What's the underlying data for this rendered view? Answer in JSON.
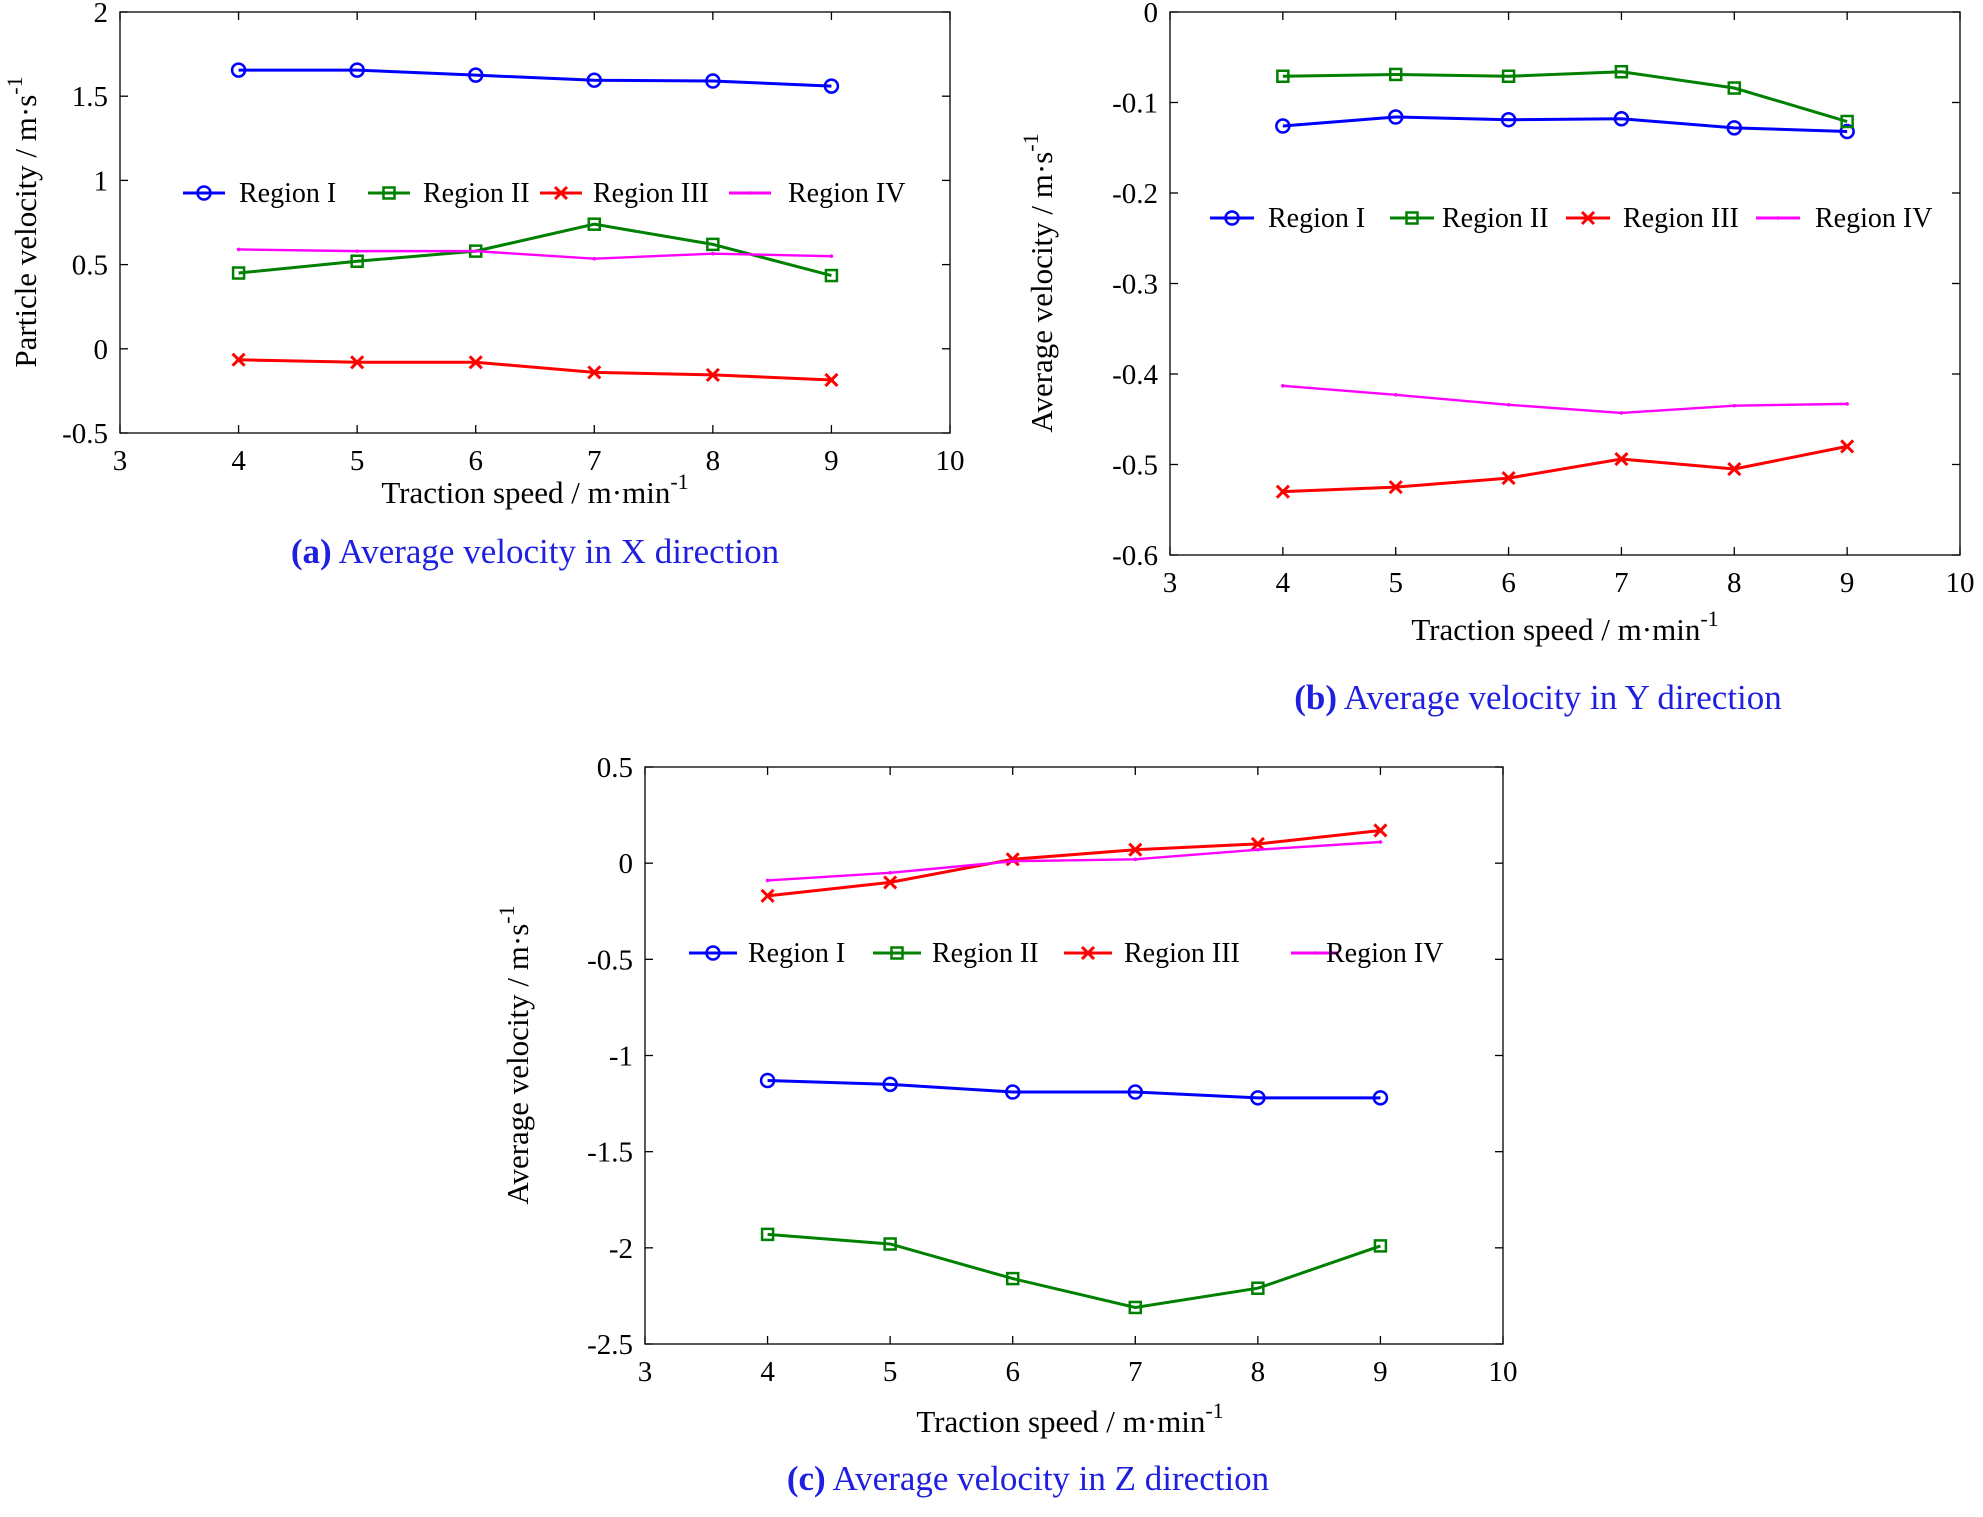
{
  "chart_data": [
    {
      "type": "line",
      "id": "a",
      "caption_label": "(a)",
      "caption_text": " Average velocity in X direction",
      "xlabel": "Traction speed / m·min",
      "xlabel_sup": "-1",
      "ylabel": "Particle velocity / m·s",
      "ylabel_sup": "-1",
      "xlim": [
        3,
        10
      ],
      "ylim": [
        -0.5,
        2
      ],
      "xticks": [
        3,
        4,
        5,
        6,
        7,
        8,
        9,
        10
      ],
      "yticks": [
        -0.5,
        0,
        0.5,
        1,
        1.5,
        2
      ],
      "ytick_labels": [
        "-0.5",
        "0",
        "0.5",
        "1",
        "1.5",
        "2"
      ],
      "legend_position": "upper-middle",
      "x": [
        4,
        5,
        6,
        7,
        8,
        9
      ],
      "series": [
        {
          "name": "Region I",
          "color": "#0000ff",
          "marker": "circle",
          "values": [
            1.655,
            1.655,
            1.625,
            1.595,
            1.59,
            1.56
          ]
        },
        {
          "name": "Region II",
          "color": "#008000",
          "marker": "square",
          "values": [
            0.45,
            0.52,
            0.58,
            0.74,
            0.62,
            0.435
          ]
        },
        {
          "name": "Region III",
          "color": "#ff0000",
          "marker": "x",
          "values": [
            -0.065,
            -0.08,
            -0.08,
            -0.14,
            -0.155,
            -0.185
          ]
        },
        {
          "name": "Region IV",
          "color": "#ff00ff",
          "marker": "dot",
          "values": [
            0.59,
            0.58,
            0.58,
            0.535,
            0.565,
            0.55
          ]
        }
      ]
    },
    {
      "type": "line",
      "id": "b",
      "caption_label": "(b)",
      "caption_text": " Average velocity in Y direction",
      "xlabel": "Traction speed / m·min",
      "xlabel_sup": "-1",
      "ylabel": "Average velocity / m·s",
      "ylabel_sup": "-1",
      "xlim": [
        3,
        10
      ],
      "ylim": [
        -0.6,
        0
      ],
      "xticks": [
        3,
        4,
        5,
        6,
        7,
        8,
        9,
        10
      ],
      "yticks": [
        -0.6,
        -0.5,
        -0.4,
        -0.3,
        -0.2,
        -0.1,
        0
      ],
      "ytick_labels": [
        "-0.6",
        "-0.5",
        "-0.4",
        "-0.3",
        "-0.2",
        "-0.1",
        "0"
      ],
      "legend_position": "upper-middle",
      "x": [
        4,
        5,
        6,
        7,
        8,
        9
      ],
      "series": [
        {
          "name": "Region I",
          "color": "#0000ff",
          "marker": "circle",
          "values": [
            -0.126,
            -0.116,
            -0.119,
            -0.118,
            -0.128,
            -0.132
          ]
        },
        {
          "name": "Region II",
          "color": "#008000",
          "marker": "square",
          "values": [
            -0.071,
            -0.069,
            -0.071,
            -0.066,
            -0.084,
            -0.121
          ]
        },
        {
          "name": "Region III",
          "color": "#ff0000",
          "marker": "x",
          "values": [
            -0.53,
            -0.525,
            -0.515,
            -0.494,
            -0.505,
            -0.48
          ]
        },
        {
          "name": "Region IV",
          "color": "#ff00ff",
          "marker": "dot",
          "values": [
            -0.413,
            -0.423,
            -0.434,
            -0.443,
            -0.435,
            -0.433
          ]
        }
      ]
    },
    {
      "type": "line",
      "id": "c",
      "caption_label": "(c)",
      "caption_text": " Average velocity in Z direction",
      "xlabel": "Traction speed / m·min",
      "xlabel_sup": "-1",
      "ylabel": "Average velocity / m·s",
      "ylabel_sup": "-1",
      "xlim": [
        3,
        10
      ],
      "ylim": [
        -2.5,
        0.5
      ],
      "xticks": [
        3,
        4,
        5,
        6,
        7,
        8,
        9,
        10
      ],
      "yticks": [
        -2.5,
        -2,
        -1.5,
        -1,
        -0.5,
        0,
        0.5
      ],
      "ytick_labels": [
        "-2.5",
        "-2",
        "-1.5",
        "-1",
        "-0.5",
        "0",
        "0.5"
      ],
      "legend_position": "upper-middle",
      "x": [
        4,
        5,
        6,
        7,
        8,
        9
      ],
      "series": [
        {
          "name": "Region I",
          "color": "#0000ff",
          "marker": "circle",
          "values": [
            -1.13,
            -1.15,
            -1.19,
            -1.19,
            -1.22,
            -1.22
          ]
        },
        {
          "name": "Region II",
          "color": "#008000",
          "marker": "square",
          "values": [
            -1.93,
            -1.98,
            -2.16,
            -2.31,
            -2.21,
            -1.99
          ]
        },
        {
          "name": "Region III",
          "color": "#ff0000",
          "marker": "x",
          "values": [
            -0.17,
            -0.1,
            0.02,
            0.07,
            0.1,
            0.17
          ]
        },
        {
          "name": "Region IV",
          "color": "#ff00ff",
          "marker": "dot",
          "values": [
            -0.09,
            -0.05,
            0.01,
            0.02,
            0.07,
            0.11
          ]
        }
      ]
    }
  ]
}
